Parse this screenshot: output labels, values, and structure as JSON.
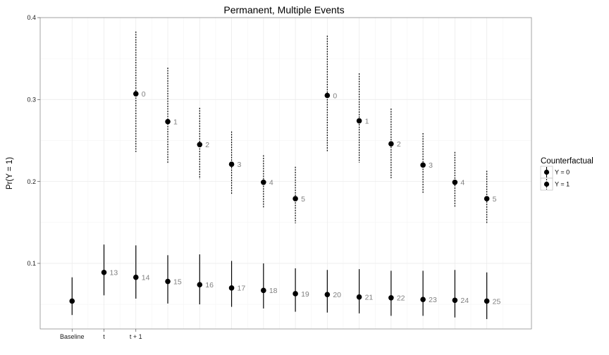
{
  "chart_data": {
    "type": "scatter",
    "title": "Permanent, Multiple Events",
    "xlabel": "",
    "ylabel": "Pr(Y = 1)",
    "ylim": [
      0.02,
      0.4
    ],
    "yticks": [
      0.1,
      0.2,
      0.3,
      0.4
    ],
    "ytick_labels": [
      "0.1",
      "0.2",
      "0.3",
      "0.4"
    ],
    "xlim": [
      0,
      15.4
    ],
    "xticks": [
      1,
      2,
      3
    ],
    "xtick_labels": [
      "Baseline",
      "t",
      "t + 1"
    ],
    "grid": true,
    "legend": {
      "title": "Counterfactual",
      "position": "right",
      "entries": [
        "Y = 0",
        "Y = 1"
      ]
    },
    "series": [
      {
        "name": "Y = 0",
        "style": "solid",
        "points": [
          {
            "x": 1,
            "y": 0.054,
            "lo": 0.037,
            "hi": 0.083,
            "label": ""
          },
          {
            "x": 2,
            "y": 0.089,
            "lo": 0.061,
            "hi": 0.123,
            "label": "13"
          },
          {
            "x": 3,
            "y": 0.083,
            "lo": 0.057,
            "hi": 0.122,
            "label": "14"
          },
          {
            "x": 4,
            "y": 0.078,
            "lo": 0.051,
            "hi": 0.11,
            "label": "15"
          },
          {
            "x": 5,
            "y": 0.074,
            "lo": 0.05,
            "hi": 0.111,
            "label": "16"
          },
          {
            "x": 6,
            "y": 0.07,
            "lo": 0.047,
            "hi": 0.103,
            "label": "17"
          },
          {
            "x": 7,
            "y": 0.067,
            "lo": 0.045,
            "hi": 0.1,
            "label": "18"
          },
          {
            "x": 8,
            "y": 0.063,
            "lo": 0.041,
            "hi": 0.094,
            "label": "19"
          },
          {
            "x": 9,
            "y": 0.062,
            "lo": 0.04,
            "hi": 0.092,
            "label": "20"
          },
          {
            "x": 10,
            "y": 0.059,
            "lo": 0.039,
            "hi": 0.093,
            "label": "21"
          },
          {
            "x": 11,
            "y": 0.058,
            "lo": 0.036,
            "hi": 0.091,
            "label": "22"
          },
          {
            "x": 12,
            "y": 0.056,
            "lo": 0.036,
            "hi": 0.091,
            "label": "23"
          },
          {
            "x": 13,
            "y": 0.055,
            "lo": 0.034,
            "hi": 0.092,
            "label": "24"
          },
          {
            "x": 14,
            "y": 0.054,
            "lo": 0.032,
            "hi": 0.089,
            "label": "25"
          }
        ]
      },
      {
        "name": "Y = 1",
        "style": "dotted",
        "points": [
          {
            "x": 3,
            "y": 0.307,
            "lo": 0.236,
            "hi": 0.383,
            "label": "0"
          },
          {
            "x": 4,
            "y": 0.273,
            "lo": 0.222,
            "hi": 0.339,
            "label": "1"
          },
          {
            "x": 5,
            "y": 0.245,
            "lo": 0.203,
            "hi": 0.29,
            "label": "2"
          },
          {
            "x": 6,
            "y": 0.221,
            "lo": 0.184,
            "hi": 0.261,
            "label": "3"
          },
          {
            "x": 7,
            "y": 0.199,
            "lo": 0.167,
            "hi": 0.232,
            "label": "4"
          },
          {
            "x": 8,
            "y": 0.179,
            "lo": 0.149,
            "hi": 0.218,
            "label": "5"
          },
          {
            "x": 9,
            "y": 0.305,
            "lo": 0.236,
            "hi": 0.378,
            "label": "0"
          },
          {
            "x": 10,
            "y": 0.274,
            "lo": 0.223,
            "hi": 0.332,
            "label": "1"
          },
          {
            "x": 11,
            "y": 0.246,
            "lo": 0.204,
            "hi": 0.289,
            "label": "2"
          },
          {
            "x": 12,
            "y": 0.22,
            "lo": 0.186,
            "hi": 0.259,
            "label": "3"
          },
          {
            "x": 13,
            "y": 0.199,
            "lo": 0.168,
            "hi": 0.236,
            "label": "4"
          },
          {
            "x": 14,
            "y": 0.179,
            "lo": 0.148,
            "hi": 0.213,
            "label": "5"
          }
        ]
      }
    ]
  }
}
